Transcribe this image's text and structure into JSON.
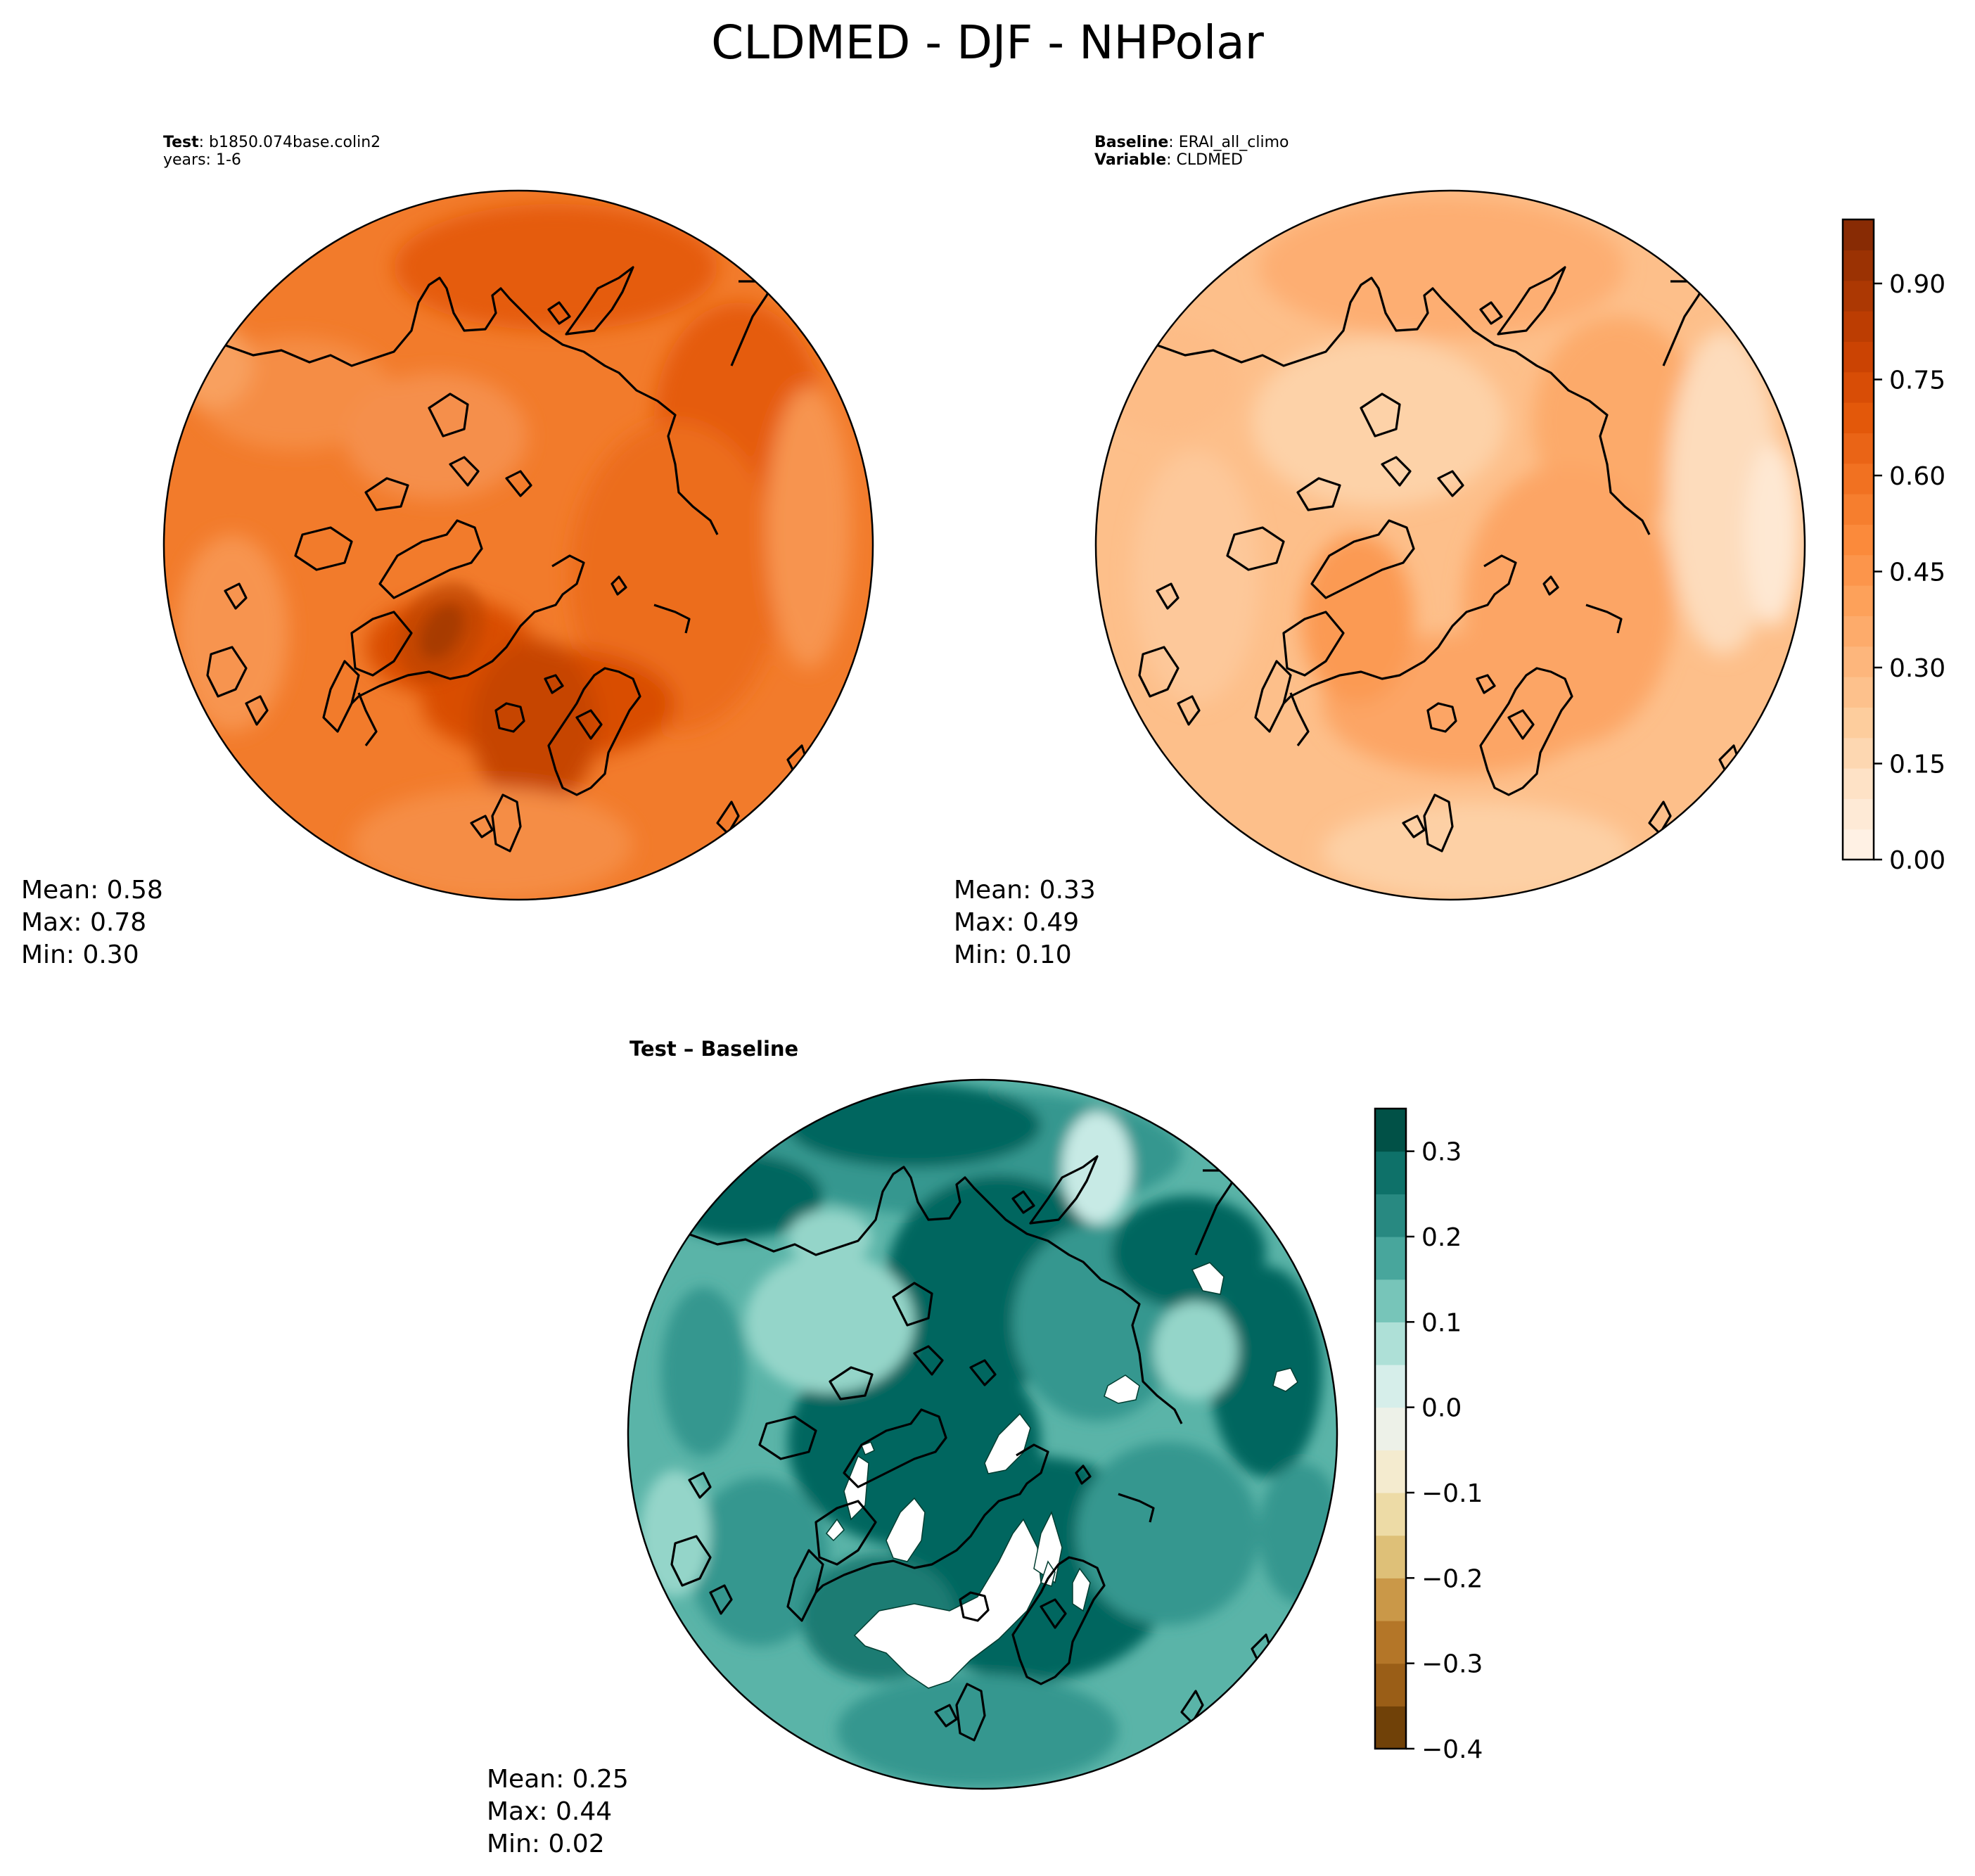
{
  "figure": {
    "title": "CLDMED - DJF - NHPolar"
  },
  "panels": {
    "test": {
      "label_bold": "Test",
      "label_sep": ":",
      "case": "b1850.074base.colin2",
      "years": "years: 1-6",
      "stats": {
        "mean": "Mean:  0.58",
        "max": "Max:  0.78",
        "min": "Min:  0.30"
      }
    },
    "baseline": {
      "label_bold": "Baseline",
      "label_sep": ":",
      "case": "ERAI_all_climo",
      "variable_bold": "Variable",
      "variable": "CLDMED",
      "stats": {
        "mean": "Mean:  0.33",
        "max": "Max:  0.49",
        "min": "Min:  0.10"
      }
    },
    "diff": {
      "title": "Test – Baseline",
      "stats": {
        "mean": "Mean:  0.25",
        "max": "Max:  0.44",
        "min": "Min:  0.02"
      }
    }
  },
  "colors": {
    "oranges": [
      "#fff5eb",
      "#fee6ce",
      "#fdd0a2",
      "#fdb87f",
      "#fda25c",
      "#fb8a3b",
      "#f07020",
      "#e25508",
      "#c74002",
      "#a63603",
      "#7f2704"
    ],
    "brbg": [
      "#543005",
      "#8c510a",
      "#a86b23",
      "#bf812d",
      "#d4af62",
      "#e7d08e",
      "#f3e6bd",
      "#f5f0e1",
      "#e4f2ef",
      "#c7eae5",
      "#94d5c9",
      "#5ab4a8",
      "#35978f",
      "#1b7b73",
      "#01665e",
      "#003c30"
    ],
    "coast": "#000000",
    "missing": "#ffffff"
  },
  "chart_data": [
    {
      "type": "heatmap",
      "name": "test",
      "projection": "north-polar-stereographic",
      "summary": {
        "mean": 0.58,
        "max": 0.78,
        "min": 0.3
      },
      "colorbar": "shared-with-baseline"
    },
    {
      "type": "heatmap",
      "name": "baseline",
      "projection": "north-polar-stereographic",
      "summary": {
        "mean": 0.33,
        "max": 0.49,
        "min": 0.1
      },
      "colorbar": {
        "range": [
          0.0,
          1.0
        ],
        "ticks": [
          0.0,
          0.15,
          0.3,
          0.45,
          0.6,
          0.75,
          0.9
        ],
        "tick_labels": [
          "0.00",
          "0.15",
          "0.30",
          "0.45",
          "0.60",
          "0.75",
          "0.90"
        ],
        "levels": 21,
        "cmap": "Oranges"
      }
    },
    {
      "type": "heatmap",
      "name": "difference",
      "projection": "north-polar-stereographic",
      "summary": {
        "mean": 0.25,
        "max": 0.44,
        "min": 0.02
      },
      "colorbar": {
        "range": [
          -0.4,
          0.35
        ],
        "ticks": [
          -0.4,
          -0.3,
          -0.2,
          -0.1,
          0.0,
          0.1,
          0.2,
          0.3
        ],
        "tick_labels": [
          "−0.4",
          "−0.3",
          "−0.2",
          "−0.1",
          "0.0",
          "0.1",
          "0.2",
          "0.3"
        ],
        "level_step": 0.05,
        "cmap": "BrBG"
      }
    }
  ]
}
